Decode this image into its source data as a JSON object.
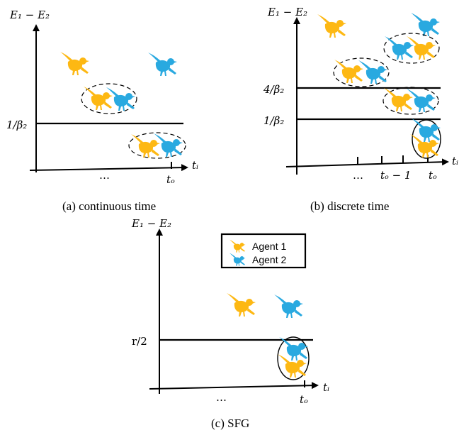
{
  "colors": {
    "agent1": "#FDB813",
    "agent2": "#29A9E0"
  },
  "panel_a": {
    "ylabel": "E₁ − E₂",
    "threshold": "1/β₂",
    "xlabel": "tᵢ",
    "ellipsis": "…",
    "tick": "tₒ",
    "caption": "(a) continuous time"
  },
  "panel_b": {
    "ylabel": "E₁ − E₂",
    "threshold_high": "4/β₂",
    "threshold_low": "1/β₂",
    "xlabel": "tᵢ",
    "ellipsis": "…",
    "tick_prev": "tₒ − 1",
    "tick": "tₒ",
    "caption": "(b) discrete time"
  },
  "panel_c": {
    "ylabel": "E₁ − E₂",
    "threshold": "r/2",
    "xlabel": "tᵢ",
    "ellipsis": "…",
    "tick": "tₒ",
    "caption": "(c) SFG",
    "legend": {
      "agent1": "Agent 1",
      "agent2": "Agent 2"
    }
  },
  "icons": {
    "bird": "bird-icon"
  }
}
